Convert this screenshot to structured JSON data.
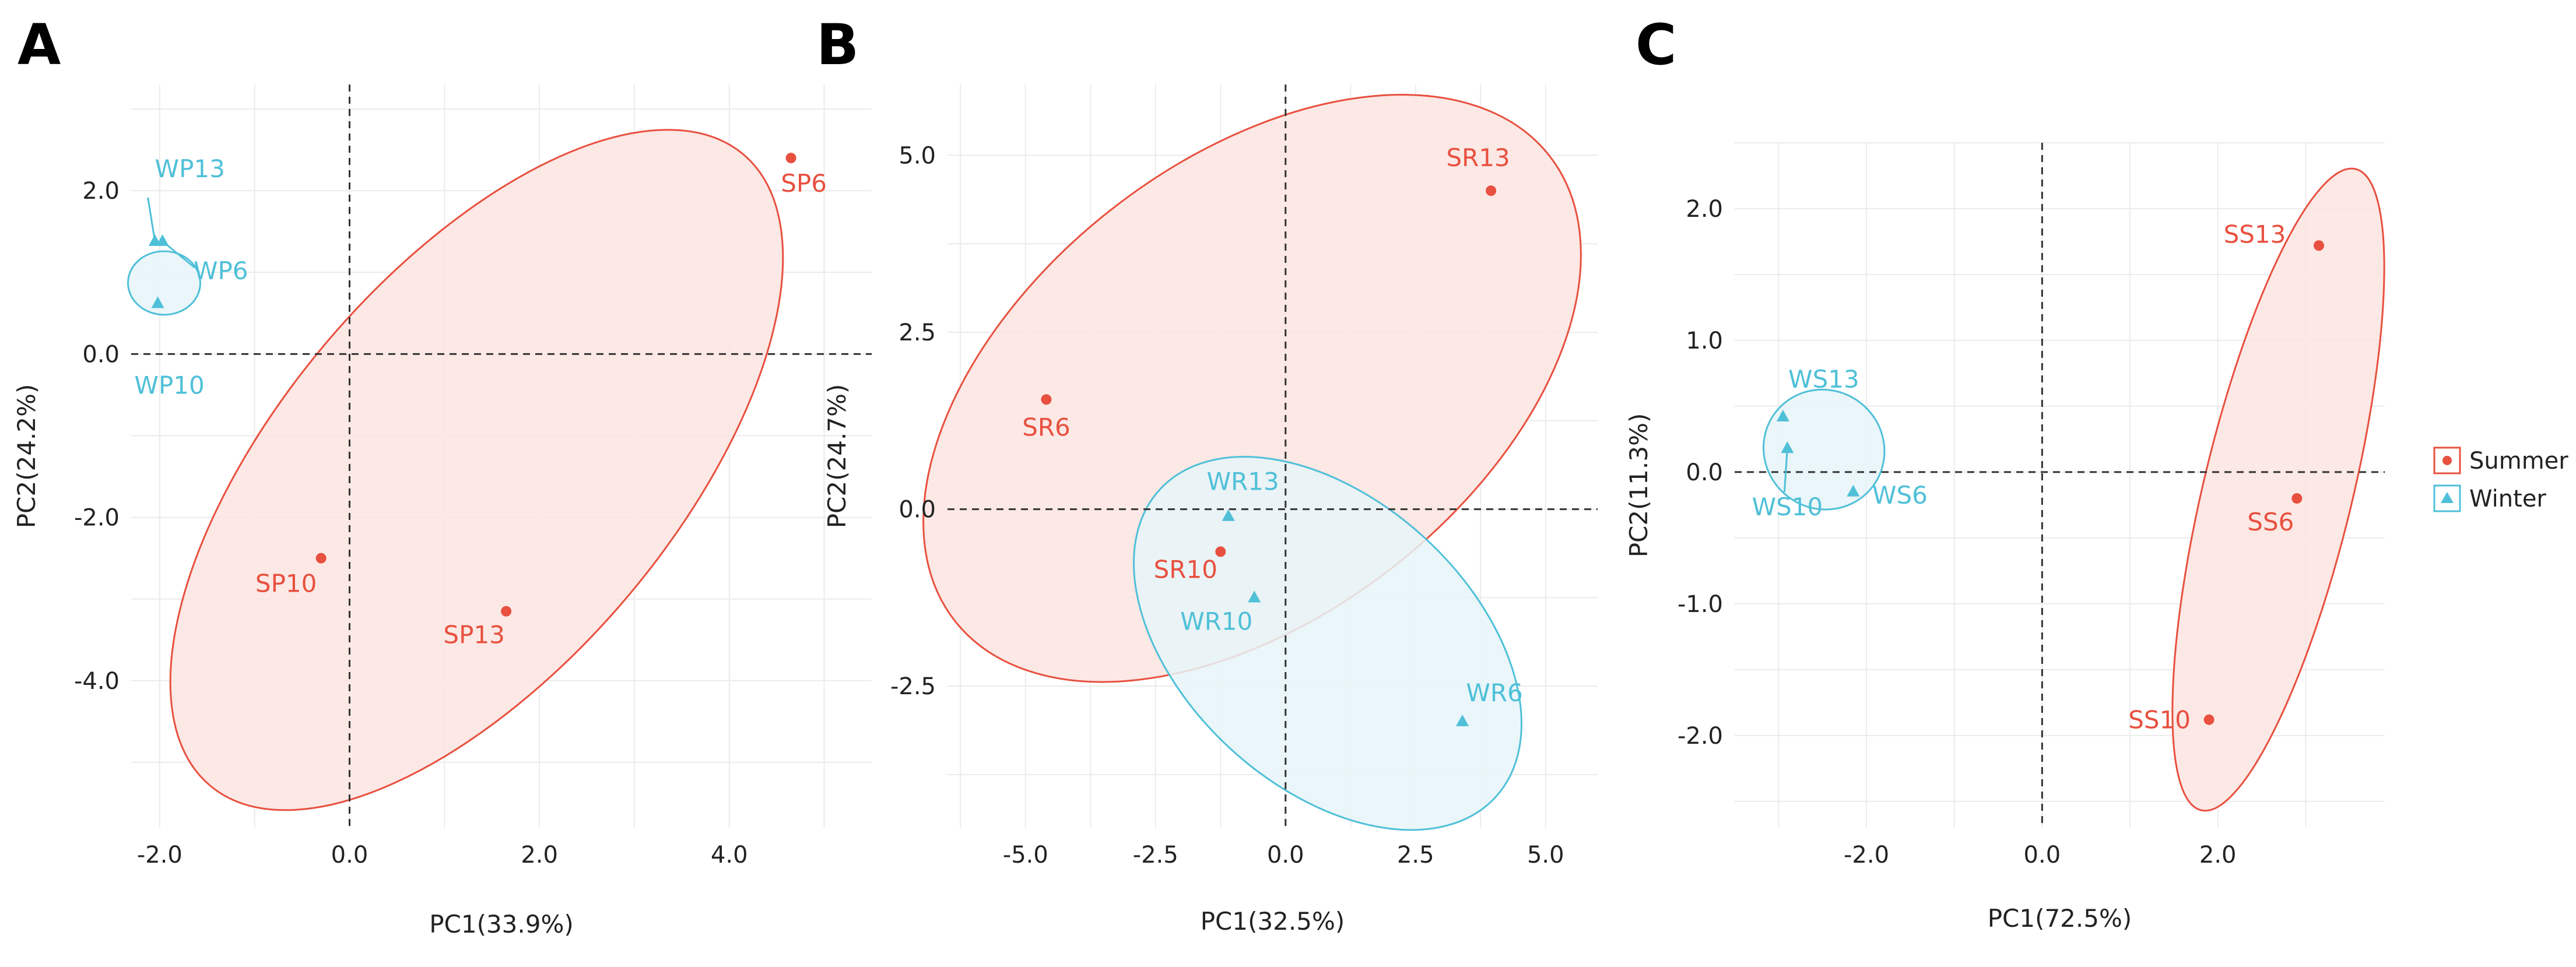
{
  "colors": {
    "summer": "#e8503f",
    "winter": "#4fc0d8",
    "summer_fill": "#fbe4e1",
    "winter_fill": "#e6f5f8",
    "grid": "#ebebeb"
  },
  "legend": {
    "position": "right",
    "items": [
      {
        "label": "Summer",
        "group": "summer",
        "marker": "circle"
      },
      {
        "label": "Winter",
        "group": "winter",
        "marker": "triangle"
      }
    ]
  },
  "chart_data": [
    {
      "type": "scatter",
      "panel": "A",
      "xlabel": "PC1(33.9%)",
      "ylabel": "PC2(24.2%)",
      "xlim": [
        -2.3,
        5.5
      ],
      "ylim": [
        -5.8,
        3.3
      ],
      "xticks": [
        -2.0,
        0.0,
        2.0,
        4.0
      ],
      "yticks": [
        -4.0,
        -2.0,
        0.0,
        2.0
      ],
      "xtick_labels": [
        "-2.0",
        "0.0",
        "2.0",
        "4.0"
      ],
      "ytick_labels": [
        "-4.0",
        "-2.0",
        "0.0",
        "2.0"
      ],
      "series": [
        {
          "group": "summer",
          "points": [
            {
              "label": "SP6",
              "x": 4.65,
              "y": 2.4
            },
            {
              "label": "SP10",
              "x": -0.3,
              "y": -2.5
            },
            {
              "label": "SP13",
              "x": 1.65,
              "y": -3.15
            }
          ]
        },
        {
          "group": "winter",
          "points": [
            {
              "label": "WP13",
              "x": -2.05,
              "y": 1.38
            },
            {
              "label": "WP6",
              "x": -1.97,
              "y": 1.38
            },
            {
              "label": "WP10",
              "x": -2.02,
              "y": 0.62
            }
          ]
        }
      ]
    },
    {
      "type": "scatter",
      "panel": "B",
      "xlabel": "PC1(32.5%)",
      "ylabel": "PC2(24.7%)",
      "xlim": [
        -6.5,
        6.0
      ],
      "ylim": [
        -4.5,
        6.0
      ],
      "xticks": [
        -5.0,
        -2.5,
        0.0,
        2.5,
        5.0
      ],
      "yticks": [
        -2.5,
        0.0,
        2.5,
        5.0
      ],
      "xtick_labels": [
        "-5.0",
        "-2.5",
        "0.0",
        "2.5",
        "5.0"
      ],
      "ytick_labels": [
        "-2.5",
        "0.0",
        "2.5",
        "5.0"
      ],
      "series": [
        {
          "group": "summer",
          "points": [
            {
              "label": "SR13",
              "x": 3.95,
              "y": 4.5
            },
            {
              "label": "SR6",
              "x": -4.6,
              "y": 1.55
            },
            {
              "label": "SR10",
              "x": -1.25,
              "y": -0.6
            }
          ]
        },
        {
          "group": "winter",
          "points": [
            {
              "label": "WR13",
              "x": -1.1,
              "y": -0.1
            },
            {
              "label": "WR10",
              "x": -0.6,
              "y": -1.25
            },
            {
              "label": "WR6",
              "x": 3.4,
              "y": -3.0
            }
          ]
        }
      ]
    },
    {
      "type": "scatter",
      "panel": "C",
      "xlabel": "PC1(72.5%)",
      "ylabel": "PC2(11.3%)",
      "xlim": [
        -3.5,
        3.9
      ],
      "ylim": [
        -2.7,
        2.5
      ],
      "xticks": [
        -2.0,
        0.0,
        2.0
      ],
      "yticks": [
        -2.0,
        -1.0,
        0.0,
        1.0,
        2.0
      ],
      "xtick_labels": [
        "-2.0",
        "0.0",
        "2.0"
      ],
      "ytick_labels": [
        "-2.0",
        "-1.0",
        "0.0",
        "1.0",
        "2.0"
      ],
      "series": [
        {
          "group": "summer",
          "points": [
            {
              "label": "SS13",
              "x": 3.15,
              "y": 1.72
            },
            {
              "label": "SS6",
              "x": 2.9,
              "y": -0.2
            },
            {
              "label": "SS10",
              "x": 1.9,
              "y": -1.88
            }
          ]
        },
        {
          "group": "winter",
          "points": [
            {
              "label": "WS13",
              "x": -2.95,
              "y": 0.42
            },
            {
              "label": "WS10",
              "x": -2.9,
              "y": 0.18
            },
            {
              "label": "WS6",
              "x": -2.15,
              "y": -0.15
            }
          ]
        }
      ]
    }
  ]
}
